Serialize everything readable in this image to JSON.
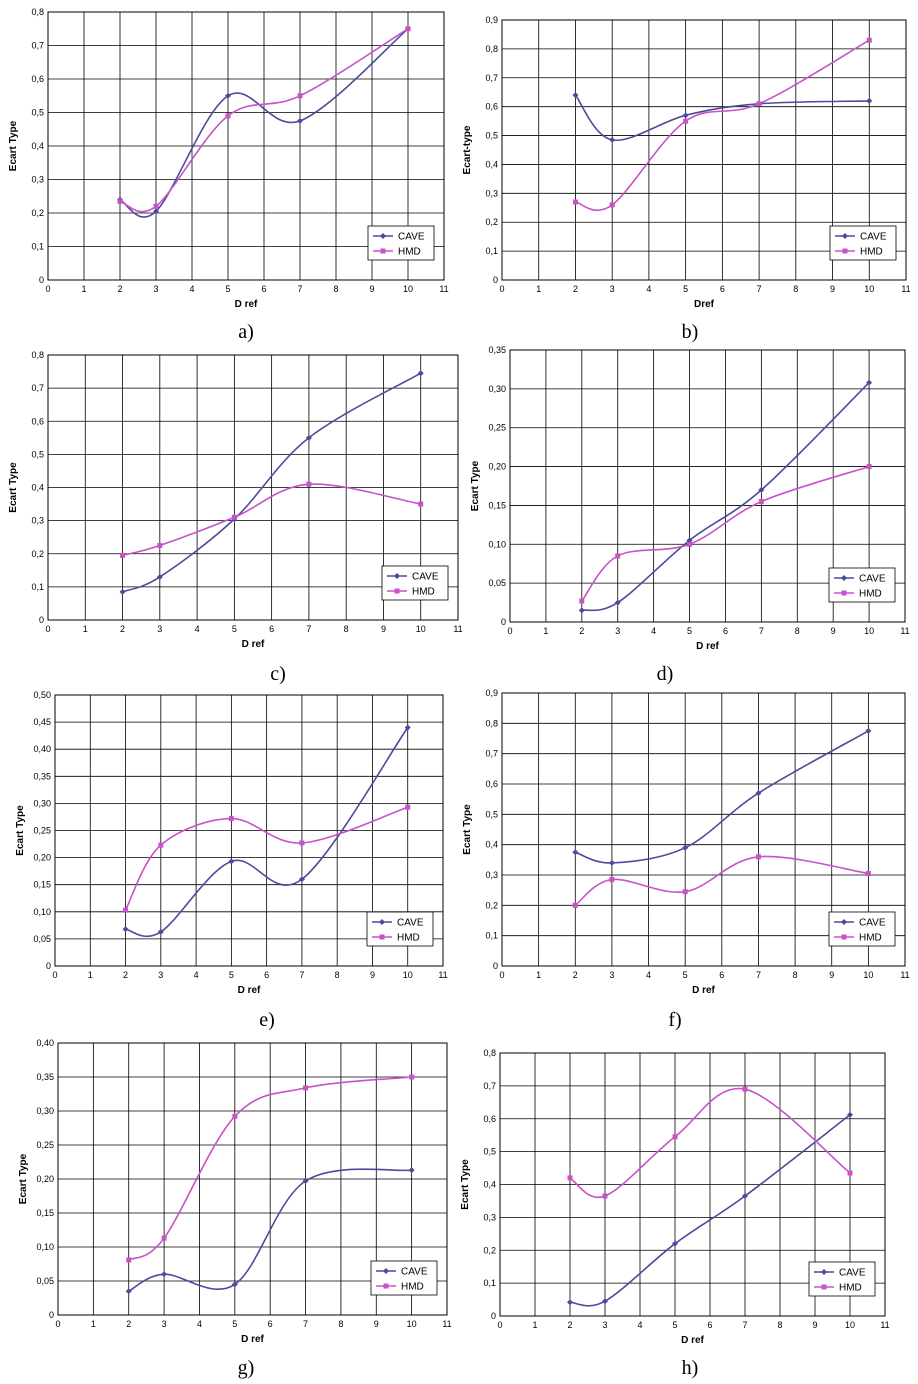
{
  "colors": {
    "cave": "#4b4b9b",
    "hmd": "#c852c8",
    "grid": "#000000"
  },
  "chart_data": [
    {
      "type": "line",
      "panel_label": "a)",
      "xlabel": "D ref",
      "ylabel": "Ecart Type",
      "xlim": [
        0,
        11
      ],
      "ylim": [
        0,
        0.8
      ],
      "ystep": 0.1,
      "ydecimals": 1,
      "legend": "bottom-right",
      "x": [
        2,
        3,
        5,
        7,
        10
      ],
      "series": [
        {
          "name": "CAVE",
          "values": [
            0.24,
            0.205,
            0.55,
            0.475,
            0.75
          ]
        },
        {
          "name": "HMD",
          "values": [
            0.235,
            0.22,
            0.49,
            0.55,
            0.75
          ]
        }
      ]
    },
    {
      "type": "line",
      "panel_label": "b)",
      "xlabel": "Dref",
      "ylabel": "Ecart-type",
      "xlim": [
        0,
        11
      ],
      "ylim": [
        0,
        0.9
      ],
      "ystep": 0.1,
      "ydecimals": 1,
      "legend": "bottom-right",
      "x": [
        2,
        3,
        5,
        7,
        10
      ],
      "series": [
        {
          "name": "CAVE",
          "values": [
            0.64,
            0.485,
            0.57,
            0.61,
            0.62
          ]
        },
        {
          "name": "HMD",
          "values": [
            0.27,
            0.26,
            0.55,
            0.61,
            0.83
          ]
        }
      ]
    },
    {
      "type": "line",
      "panel_label": "c)",
      "xlabel": "D ref",
      "ylabel": "Ecart Type",
      "xlim": [
        0,
        11
      ],
      "ylim": [
        0,
        0.8
      ],
      "ystep": 0.1,
      "ydecimals": 1,
      "legend": "bottom-right",
      "x": [
        2,
        3,
        5,
        7,
        10
      ],
      "series": [
        {
          "name": "CAVE",
          "values": [
            0.085,
            0.13,
            0.305,
            0.55,
            0.745
          ]
        },
        {
          "name": "HMD",
          "values": [
            0.195,
            0.225,
            0.31,
            0.41,
            0.35
          ]
        }
      ]
    },
    {
      "type": "line",
      "panel_label": "d)",
      "xlabel": "D ref",
      "ylabel": "Ecart Type",
      "xlim": [
        0,
        11
      ],
      "ylim": [
        0,
        0.35
      ],
      "ystep": 0.05,
      "ydecimals": 2,
      "legend": "bottom-right",
      "x": [
        2,
        3,
        5,
        7,
        10
      ],
      "series": [
        {
          "name": "CAVE",
          "values": [
            0.015,
            0.025,
            0.105,
            0.17,
            0.308
          ]
        },
        {
          "name": "HMD",
          "values": [
            0.027,
            0.085,
            0.1,
            0.155,
            0.2
          ]
        }
      ]
    },
    {
      "type": "line",
      "panel_label": "e)",
      "xlabel": "D ref",
      "ylabel": "Ecart Type",
      "xlim": [
        0,
        11
      ],
      "ylim": [
        0,
        0.5
      ],
      "ystep": 0.05,
      "ydecimals": 2,
      "legend": "bottom-right",
      "x": [
        2,
        3,
        5,
        7,
        10
      ],
      "series": [
        {
          "name": "CAVE",
          "values": [
            0.068,
            0.063,
            0.193,
            0.16,
            0.44
          ]
        },
        {
          "name": "HMD",
          "values": [
            0.103,
            0.223,
            0.272,
            0.227,
            0.293
          ]
        }
      ]
    },
    {
      "type": "line",
      "panel_label": "f)",
      "xlabel": "D ref",
      "ylabel": "Ecart Type",
      "xlim": [
        0,
        11
      ],
      "ylim": [
        0,
        0.9
      ],
      "ystep": 0.1,
      "ydecimals": 1,
      "legend": "bottom-right",
      "x": [
        2,
        3,
        5,
        7,
        10
      ],
      "series": [
        {
          "name": "CAVE",
          "values": [
            0.375,
            0.34,
            0.39,
            0.57,
            0.775
          ]
        },
        {
          "name": "HMD",
          "values": [
            0.2,
            0.285,
            0.245,
            0.36,
            0.305
          ]
        }
      ]
    },
    {
      "type": "line",
      "panel_label": "g)",
      "xlabel": "D ref",
      "ylabel": "Ecart Type",
      "xlim": [
        0,
        11
      ],
      "ylim": [
        0,
        0.4
      ],
      "ystep": 0.05,
      "ydecimals": 2,
      "legend": "bottom-right",
      "x": [
        2,
        3,
        5,
        7,
        10
      ],
      "series": [
        {
          "name": "CAVE",
          "values": [
            0.035,
            0.06,
            0.045,
            0.197,
            0.213
          ]
        },
        {
          "name": "HMD",
          "values": [
            0.081,
            0.113,
            0.292,
            0.334,
            0.35
          ]
        }
      ]
    },
    {
      "type": "line",
      "panel_label": "h)",
      "xlabel": "D ref",
      "ylabel": "Ecart Type",
      "xlim": [
        0,
        11
      ],
      "ylim": [
        0,
        0.8
      ],
      "ystep": 0.1,
      "ydecimals": 1,
      "legend": "bottom-right",
      "x": [
        2,
        3,
        5,
        7,
        10
      ],
      "series": [
        {
          "name": "CAVE",
          "values": [
            0.042,
            0.045,
            0.22,
            0.365,
            0.612
          ]
        },
        {
          "name": "HMD",
          "values": [
            0.42,
            0.365,
            0.545,
            0.69,
            0.435
          ]
        }
      ]
    }
  ]
}
